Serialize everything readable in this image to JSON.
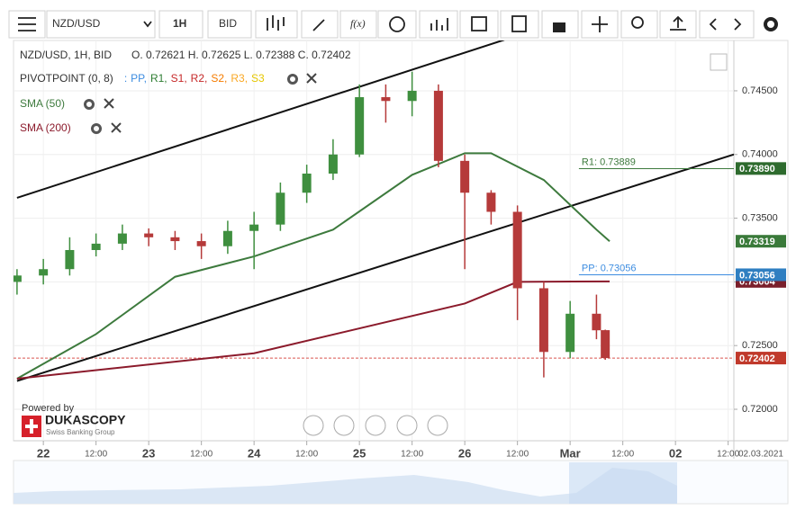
{
  "toolbar": {
    "symbol": "NZD/USD",
    "timeframe": "1H",
    "side": "BID",
    "fx": "f(x)"
  },
  "legend": {
    "header": "NZD/USD, 1H, BID",
    "ohlc": "O. 0.72621 H. 0.72625 L. 0.72388 C. 0.72402",
    "pivot_name": "PIVOTPOINT (0, 8)",
    "pivot_lead": ":",
    "pivot_items": [
      {
        "text": "PP,",
        "color": "#3c8ce0"
      },
      {
        "text": "R1,",
        "color": "#2e7d32"
      },
      {
        "text": "S1,",
        "color": "#c62828"
      },
      {
        "text": "R2,",
        "color": "#c62828"
      },
      {
        "text": "S2,",
        "color": "#f57c00"
      },
      {
        "text": "R3,",
        "color": "#f9a825"
      },
      {
        "text": "S3",
        "color": "#e6c700"
      }
    ],
    "sma50": "SMA (50)",
    "sma200": "SMA (200)"
  },
  "branding": {
    "powered": "Powered by",
    "name": "DUKASCOPY",
    "tagline": "Swiss Banking Group"
  },
  "chart_data": {
    "type": "candlestick",
    "x": [
      -6,
      0,
      6,
      12,
      18,
      24,
      30,
      36,
      42,
      48,
      54,
      60,
      66,
      72,
      78,
      84,
      90,
      96,
      102,
      108,
      114,
      120,
      126,
      128
    ],
    "series": [
      {
        "name": "NZD/USD",
        "up_color": "#3f8f3f",
        "down_color": "#b53a3a",
        "open": [
          0.73,
          0.7305,
          0.731,
          0.7325,
          0.733,
          0.7338,
          0.7335,
          0.7332,
          0.7328,
          0.734,
          0.7345,
          0.737,
          0.7385,
          0.74,
          0.7445,
          0.7442,
          0.745,
          0.7395,
          0.737,
          0.7355,
          0.7295,
          0.7245,
          0.7275,
          0.72621
        ],
        "high": [
          0.731,
          0.7318,
          0.7335,
          0.7338,
          0.7345,
          0.7342,
          0.734,
          0.7338,
          0.7348,
          0.7355,
          0.7378,
          0.7392,
          0.7412,
          0.7455,
          0.7455,
          0.7465,
          0.7455,
          0.74,
          0.7372,
          0.736,
          0.73,
          0.7285,
          0.729,
          0.72625
        ],
        "low": [
          0.729,
          0.7298,
          0.7305,
          0.732,
          0.7325,
          0.7328,
          0.7325,
          0.7318,
          0.7322,
          0.731,
          0.734,
          0.7362,
          0.738,
          0.7398,
          0.7425,
          0.743,
          0.739,
          0.731,
          0.7345,
          0.727,
          0.7225,
          0.724,
          0.7255,
          0.72388
        ],
        "close": [
          0.7305,
          0.731,
          0.7325,
          0.733,
          0.7338,
          0.7335,
          0.7332,
          0.7328,
          0.734,
          0.7345,
          0.737,
          0.7385,
          0.74,
          0.7445,
          0.7442,
          0.745,
          0.7395,
          0.737,
          0.7355,
          0.7295,
          0.7245,
          0.7275,
          0.7262,
          0.72402
        ]
      }
    ],
    "indicators": [
      {
        "name": "SMA (50)",
        "color": "#3d7a3d",
        "x": [
          -6,
          12,
          30,
          48,
          66,
          84,
          96,
          102,
          114,
          126,
          129
        ],
        "values": [
          0.7224,
          0.7259,
          0.7304,
          0.732,
          0.7341,
          0.7384,
          0.7401,
          0.7401,
          0.738,
          0.7341,
          0.73319
        ]
      },
      {
        "name": "SMA (200)",
        "color": "#8b1a2b",
        "x": [
          -6,
          48,
          96,
          108,
          129
        ],
        "values": [
          0.7224,
          0.7244,
          0.7283,
          0.73,
          0.73004
        ]
      }
    ],
    "trendlines": [
      {
        "color": "#111",
        "x": [
          -6,
          105
        ],
        "values": [
          0.7366,
          0.749
        ]
      },
      {
        "color": "#111",
        "x": [
          -6,
          157.3
        ],
        "values": [
          0.72222,
          0.74
        ]
      }
    ],
    "pivots": [
      {
        "label": "R1: 0.73889",
        "value": 0.73889,
        "color": "#3d7a3d",
        "x_start": 122
      },
      {
        "label": "PP: 0.73056",
        "value": 0.73056,
        "color": "#3c8ce0",
        "x_start": 122
      }
    ],
    "price_tags": [
      {
        "value": 0.7389,
        "label": "0.73890",
        "color": "#2e6b2e"
      },
      {
        "value": 0.73319,
        "label": "0.73319",
        "color": "#3a7a3a"
      },
      {
        "value": 0.73004,
        "label": "0.73004",
        "color": "#7a1f2b"
      },
      {
        "value": 0.73056,
        "label": "0.73056",
        "color": "#2f7fc1"
      },
      {
        "value": 0.72402,
        "label": "0.72402",
        "color": "#c0392b"
      }
    ],
    "current_price": 0.72402,
    "xlim": [
      -6.8,
      157.3
    ],
    "ylim": [
      0.71753,
      0.74895
    ],
    "xticks": [
      {
        "value": 0,
        "label": "22"
      },
      {
        "value": 12,
        "label": "12:00"
      },
      {
        "value": 24,
        "label": "23"
      },
      {
        "value": 36,
        "label": "12:00"
      },
      {
        "value": 48,
        "label": "24"
      },
      {
        "value": 60,
        "label": "12:00"
      },
      {
        "value": 72,
        "label": "25"
      },
      {
        "value": 84,
        "label": "12:00"
      },
      {
        "value": 96,
        "label": "26"
      },
      {
        "value": 108,
        "label": "12:00"
      },
      {
        "value": 120,
        "label": "Mar"
      },
      {
        "value": 132,
        "label": "12:00"
      },
      {
        "value": 144,
        "label": "02"
      },
      {
        "value": 156,
        "label": "12:00"
      }
    ],
    "date_label": "02.03.2021",
    "yticks": [
      {
        "value": 0.72,
        "label": "0.72000"
      },
      {
        "value": 0.725,
        "label": "0.72500"
      },
      {
        "value": 0.73,
        "label": "0.73000"
      },
      {
        "value": 0.735,
        "label": "0.73500"
      },
      {
        "value": 0.74,
        "label": "0.74000"
      },
      {
        "value": 0.745,
        "label": "0.74500"
      }
    ],
    "grid": true
  }
}
